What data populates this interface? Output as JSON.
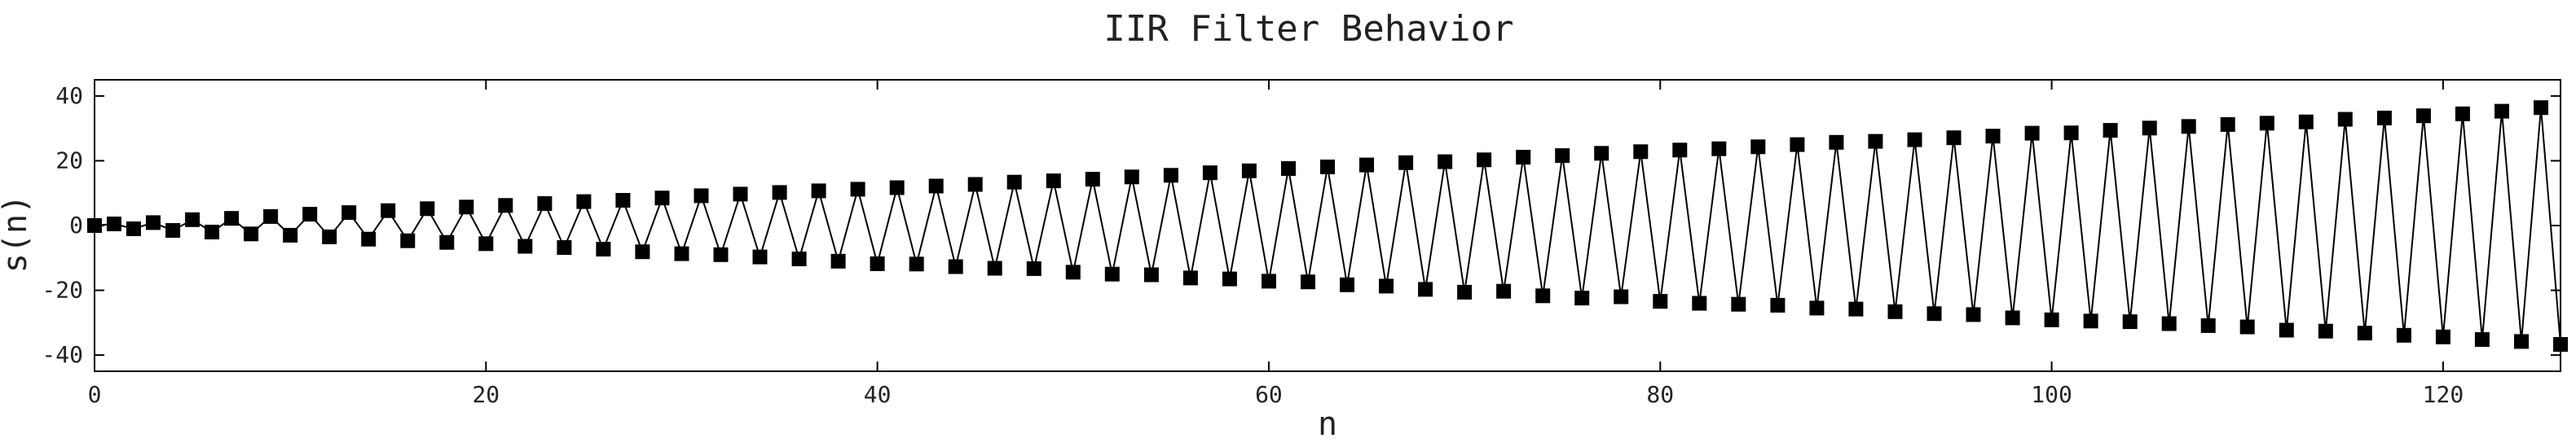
{
  "chart_data": {
    "type": "line",
    "title": "IIR Filter Behavior",
    "xlabel": "n",
    "ylabel": "s(n)",
    "xlim": [
      0,
      126
    ],
    "ylim": [
      -45,
      45
    ],
    "xticks": [
      0,
      20,
      40,
      60,
      80,
      100,
      120
    ],
    "yticks": [
      -40,
      -20,
      0,
      20,
      40
    ],
    "grid": false,
    "marker": "square",
    "line_color": "#000000",
    "series": [
      {
        "formula_note": "alternating sign, amplitude grows ~0.29 per step",
        "x": [
          0,
          1,
          2,
          3,
          4,
          5,
          6,
          7,
          8,
          9,
          10,
          11,
          12,
          13,
          14,
          15,
          16,
          17,
          18,
          19,
          20,
          21,
          22,
          23,
          24,
          25,
          26,
          27,
          28,
          29,
          30,
          31,
          32,
          33,
          34,
          35,
          36,
          37,
          38,
          39,
          40,
          41,
          42,
          43,
          44,
          45,
          46,
          47,
          48,
          49,
          50,
          51,
          52,
          53,
          54,
          55,
          56,
          57,
          58,
          59,
          60,
          61,
          62,
          63,
          64,
          65,
          66,
          67,
          68,
          69,
          70,
          71,
          72,
          73,
          74,
          75,
          76,
          77,
          78,
          79,
          80,
          81,
          82,
          83,
          84,
          85,
          86,
          87,
          88,
          89,
          90,
          91,
          92,
          93,
          94,
          95,
          96,
          97,
          98,
          99,
          100,
          101,
          102,
          103,
          104,
          105,
          106,
          107,
          108,
          109,
          110,
          111,
          112,
          113,
          114,
          115,
          116,
          117,
          118,
          119,
          120,
          121,
          122,
          123,
          124,
          125,
          126
        ],
        "y": [
          0.0,
          0.5,
          -1.0,
          0.9,
          -1.5,
          1.8,
          -2.0,
          2.2,
          -2.6,
          2.8,
          -3.0,
          3.5,
          -3.5,
          4.0,
          -4.2,
          4.6,
          -4.7,
          5.2,
          -5.2,
          5.7,
          -5.6,
          6.2,
          -6.4,
          6.8,
          -6.8,
          7.4,
          -7.3,
          7.8,
          -8.1,
          8.5,
          -8.7,
          9.2,
          -9.0,
          9.7,
          -9.7,
          10.2,
          -10.3,
          10.7,
          -11.0,
          11.2,
          -11.8,
          11.7,
          -11.9,
          12.2,
          -12.7,
          12.7,
          -13.2,
          13.4,
          -13.3,
          13.8,
          -14.4,
          14.3,
          -15.0,
          15.0,
          -15.2,
          15.5,
          -16.2,
          16.3,
          -16.5,
          16.9,
          -17.2,
          17.6,
          -17.4,
          18.1,
          -18.3,
          18.7,
          -18.7,
          19.4,
          -19.7,
          19.7,
          -20.6,
          20.3,
          -20.3,
          21.1,
          -21.7,
          21.6,
          -22.4,
          22.3,
          -22.0,
          22.8,
          -23.4,
          23.3,
          -24.0,
          23.7,
          -24.3,
          24.3,
          -24.6,
          25.0,
          -25.5,
          25.7,
          -25.8,
          26.0,
          -26.6,
          26.5,
          -27.2,
          27.1,
          -27.5,
          27.6,
          -28.5,
          28.5,
          -29.1,
          28.6,
          -29.5,
          29.4,
          -29.7,
          30.1,
          -30.3,
          30.6,
          -30.9,
          31.2,
          -31.3,
          31.6,
          -32.3,
          32.0,
          -32.6,
          32.8,
          -33.2,
          33.2,
          -33.9,
          33.9,
          -34.4,
          34.5,
          -35.2,
          35.3,
          -35.8,
          36.4,
          -36.7
        ]
      }
    ]
  }
}
